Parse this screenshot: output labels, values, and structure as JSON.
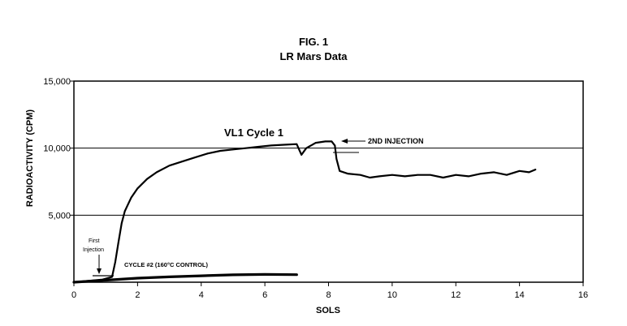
{
  "chart_data": {
    "type": "line",
    "title": "FIG. 1",
    "subtitle": "LR Mars Data",
    "xlabel": "SOLS",
    "ylabel": "RADIOACTIVITY (CPM)",
    "xlim": [
      0,
      16
    ],
    "ylim": [
      0,
      15000
    ],
    "xticks": [
      "0",
      "2",
      "4",
      "6",
      "8",
      "10",
      "12",
      "14",
      "16"
    ],
    "yticks": [
      "5,000",
      "10,000",
      "15,000"
    ],
    "grid": "horizontal",
    "series": [
      {
        "name": "VL1 Cycle 1",
        "x": [
          0,
          0.9,
          1.2,
          1.3,
          1.4,
          1.5,
          1.6,
          1.8,
          2.0,
          2.3,
          2.6,
          3.0,
          3.4,
          3.8,
          4.2,
          4.6,
          5.0,
          5.4,
          5.8,
          6.2,
          6.6,
          7.0,
          7.15,
          7.3,
          7.6,
          7.9,
          8.1,
          8.2,
          8.25,
          8.35,
          8.6,
          9.0,
          9.3,
          9.6,
          10.0,
          10.4,
          10.8,
          11.2,
          11.6,
          12.0,
          12.4,
          12.8,
          13.2,
          13.6,
          14.0,
          14.3,
          14.5
        ],
        "y": [
          0,
          200,
          400,
          1500,
          3000,
          4400,
          5300,
          6300,
          7000,
          7700,
          8200,
          8700,
          9000,
          9300,
          9600,
          9800,
          9900,
          10000,
          10100,
          10200,
          10250,
          10300,
          9500,
          10000,
          10400,
          10500,
          10500,
          10200,
          9200,
          8300,
          8100,
          8000,
          7800,
          7900,
          8000,
          7900,
          8000,
          8000,
          7800,
          8000,
          7900,
          8100,
          8200,
          8000,
          8300,
          8200,
          8400
        ]
      },
      {
        "name": "CYCLE #2 (160°C CONTROL)",
        "x": [
          0,
          1,
          2,
          3,
          4,
          5,
          6,
          7
        ],
        "y": [
          0,
          150,
          300,
          400,
          480,
          550,
          580,
          560
        ]
      }
    ],
    "annotations": {
      "series_label": "VL1 Cycle 1",
      "second_injection": "2ND INJECTION",
      "first_injection_line1": "First",
      "first_injection_line2": "Injection",
      "control_label": "CYCLE #2 (160°C CONTROL)"
    }
  }
}
